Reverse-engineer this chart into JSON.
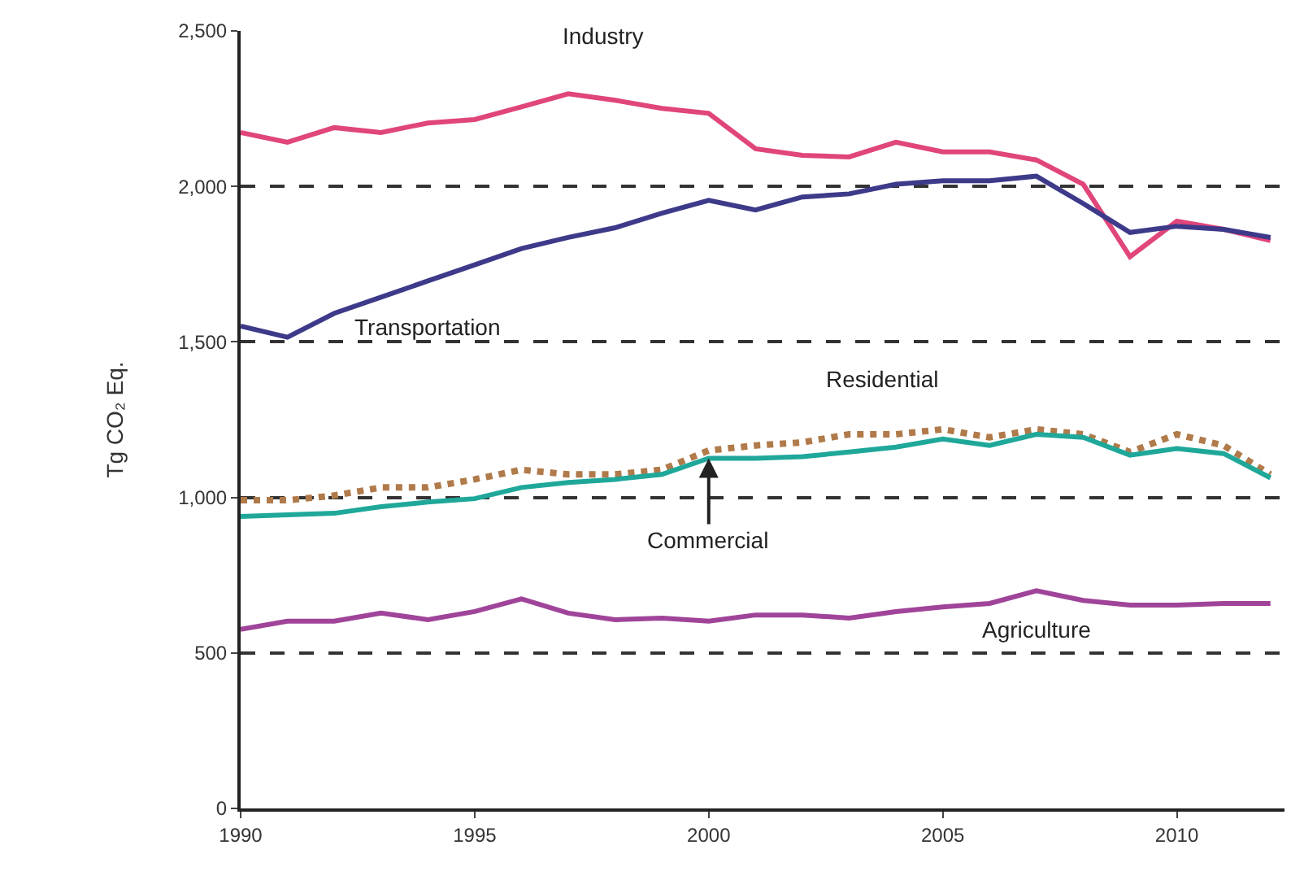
{
  "chart_data": {
    "type": "line",
    "ylabel": "Tg CO₂ Eq.",
    "x": [
      1990,
      1991,
      1992,
      1993,
      1994,
      1995,
      1996,
      1997,
      1998,
      1999,
      2000,
      2001,
      2002,
      2003,
      2004,
      2005,
      2006,
      2007,
      2008,
      2009,
      2010,
      2011,
      2012
    ],
    "xlim": [
      1990,
      2012.3
    ],
    "xticks": [
      1990,
      1995,
      2000,
      2005,
      2010
    ],
    "ylim": [
      0,
      2500
    ],
    "yticks": [
      {
        "value": 0,
        "label": "0"
      },
      {
        "value": 500,
        "label": "500"
      },
      {
        "value": 1000,
        "label": "1,000"
      },
      {
        "value": 1500,
        "label": "1,500"
      },
      {
        "value": 2000,
        "label": "2,000"
      },
      {
        "value": 2500,
        "label": "2,500"
      }
    ],
    "grid": "y",
    "legend": false,
    "marker": "none",
    "series": [
      {
        "name": "Industry",
        "color": "#e0457b",
        "line_style": "solid",
        "values": [
          2173,
          2142,
          2189,
          2173,
          2204,
          2215,
          2256,
          2298,
          2277,
          2251,
          2235,
          2121,
          2100,
          2095,
          2142,
          2111,
          2111,
          2085,
          2007,
          1774,
          1888,
          1862,
          1826
        ]
      },
      {
        "name": "Transportation",
        "color": "#3d3a8a",
        "line_style": "solid",
        "values": [
          1551,
          1515,
          1592,
          1644,
          1696,
          1748,
          1800,
          1836,
          1867,
          1914,
          1955,
          1924,
          1966,
          1976,
          2007,
          2018,
          2018,
          2033,
          1945,
          1852,
          1872,
          1862,
          1836
        ]
      },
      {
        "name": "Residential",
        "color": "#b07a4a",
        "line_style": "dotted",
        "values": [
          991,
          991,
          1006,
          1032,
          1032,
          1058,
          1089,
          1074,
          1074,
          1089,
          1151,
          1167,
          1177,
          1203,
          1203,
          1219,
          1193,
          1219,
          1203,
          1146,
          1203,
          1167,
          1074
        ]
      },
      {
        "name": "Commercial",
        "color": "#1fa89a",
        "line_style": "solid",
        "values": [
          939,
          944,
          949,
          970,
          985,
          996,
          1032,
          1048,
          1058,
          1074,
          1126,
          1126,
          1131,
          1146,
          1162,
          1188,
          1167,
          1203,
          1193,
          1136,
          1157,
          1141,
          1063
        ]
      },
      {
        "name": "Agriculture",
        "color": "#a0449a",
        "line_style": "solid",
        "values": [
          576,
          602,
          602,
          628,
          607,
          633,
          674,
          628,
          607,
          612,
          602,
          622,
          622,
          612,
          633,
          648,
          659,
          700,
          669,
          654,
          654,
          659,
          659
        ]
      }
    ]
  }
}
